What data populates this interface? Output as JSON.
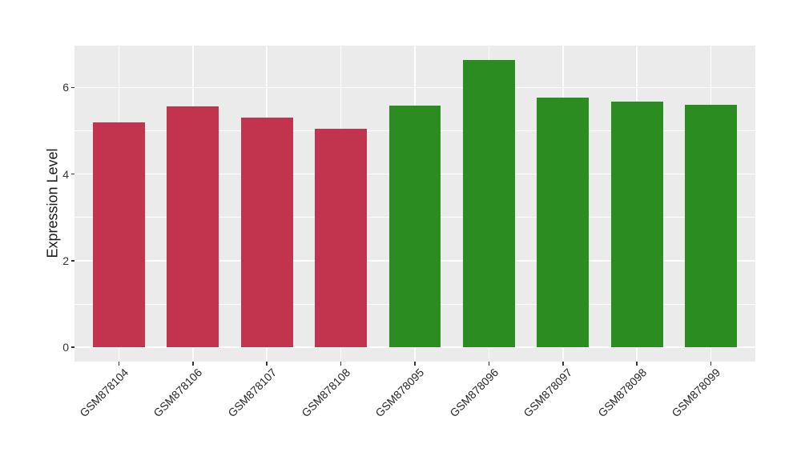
{
  "figure": {
    "background": "#FFFFFF",
    "title": ""
  },
  "axes": {
    "y_title": "Expression Level",
    "x_title": ""
  },
  "chart_data": {
    "type": "bar",
    "title": "",
    "xlabel": "",
    "ylabel": "Expression Level",
    "categories": [
      "GSM878104",
      "GSM878106",
      "GSM878107",
      "GSM878108",
      "GSM878095",
      "GSM878096",
      "GSM878097",
      "GSM878098",
      "GSM878099"
    ],
    "values": [
      5.2,
      5.56,
      5.3,
      5.05,
      5.58,
      6.64,
      5.77,
      5.68,
      5.61
    ],
    "groups": [
      "group1",
      "group1",
      "group1",
      "group1",
      "group2",
      "group2",
      "group2",
      "group2",
      "group2"
    ],
    "group_colors": {
      "group1": "#C2334D",
      "group2": "#2B8C22"
    },
    "y_ticks": [
      0,
      2,
      4,
      6
    ],
    "y_minor_ticks": [
      1,
      3,
      5
    ],
    "ylim": [
      -0.33,
      6.97
    ],
    "bar_width_fraction": 0.7,
    "grid": true,
    "legend_position": "none",
    "panel_background": "#EBEBEB",
    "grid_color": "#FFFFFF",
    "x_label_angle_degrees": 45
  }
}
